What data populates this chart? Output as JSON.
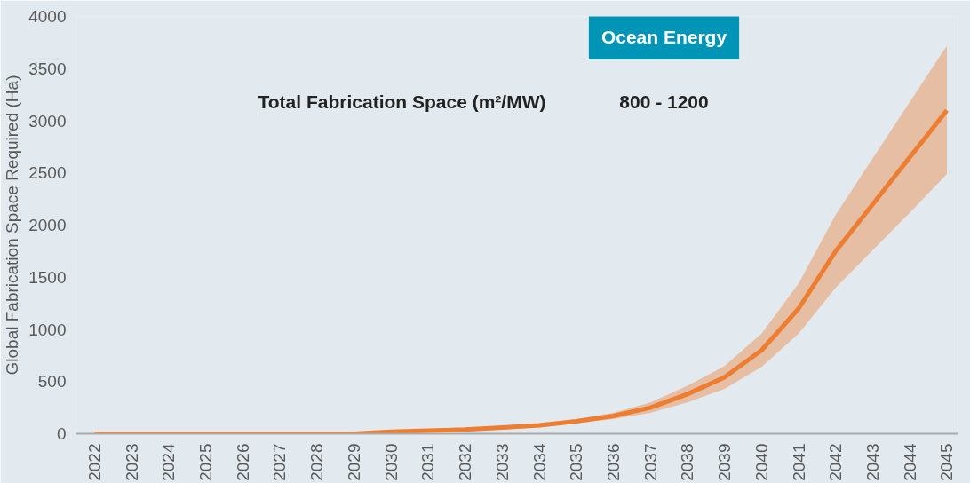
{
  "chart_data": {
    "type": "line",
    "ylabel": "Global Fabrication Space Required (Ha)",
    "x": [
      2022,
      2023,
      2024,
      2025,
      2026,
      2027,
      2028,
      2029,
      2030,
      2031,
      2032,
      2033,
      2034,
      2035,
      2036,
      2037,
      2038,
      2039,
      2040,
      2041,
      2042,
      2043,
      2044,
      2045
    ],
    "xlim": [
      2021.5,
      2045.3
    ],
    "xticks": [
      2022,
      2023,
      2024,
      2025,
      2026,
      2027,
      2028,
      2029,
      2030,
      2031,
      2032,
      2033,
      2034,
      2035,
      2036,
      2037,
      2038,
      2039,
      2040,
      2041,
      2042,
      2043,
      2044,
      2045
    ],
    "ylim": [
      0,
      4000
    ],
    "yticks": [
      0,
      500,
      1000,
      1500,
      2000,
      2500,
      3000,
      3500,
      4000
    ],
    "series": [
      {
        "color": "#ed7d31",
        "values": [
          0,
          0,
          0,
          0,
          0,
          0,
          0,
          0,
          20,
          30,
          40,
          60,
          80,
          120,
          170,
          250,
          380,
          540,
          800,
          1200,
          1750,
          2200,
          2650,
          3100
        ],
        "lower": [
          0,
          0,
          0,
          0,
          0,
          0,
          0,
          0,
          20,
          20,
          30,
          40,
          60,
          100,
          140,
          200,
          300,
          430,
          640,
          960,
          1400,
          1760,
          2120,
          2490
        ],
        "upper": [
          0,
          0,
          0,
          0,
          0,
          0,
          0,
          0,
          20,
          40,
          50,
          70,
          90,
          140,
          200,
          300,
          460,
          650,
          960,
          1440,
          2100,
          2640,
          3180,
          3720
        ]
      }
    ],
    "annotations": [
      "Ocean Energy",
      "Total Fabrication Space (m²/MW)",
      "800 - 1200"
    ],
    "grid": false,
    "line_style": "solid",
    "marker": "none"
  }
}
